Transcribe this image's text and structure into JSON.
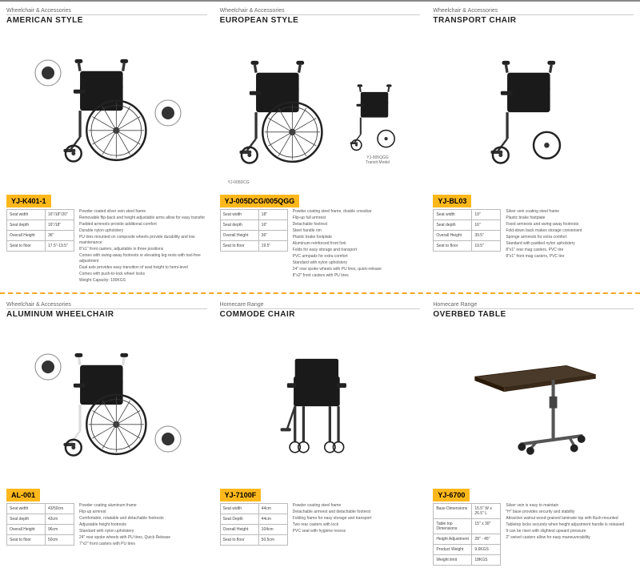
{
  "products": [
    {
      "category": "Wheelchair & Accessories",
      "title": "AMERICAN STYLE",
      "model": "YJ-K401-1",
      "specs": [
        {
          "k": "Seat width",
          "v": "16\"/18\"/20\""
        },
        {
          "k": "Seat depth",
          "v": "16\"/18\""
        },
        {
          "k": "Overall Height",
          "v": "36\""
        },
        {
          "k": "Seat to floor",
          "v": "17.5\"-19.5\""
        }
      ],
      "desc": [
        "Powder coated silver vein steel frame",
        "Removable flip-back and height adjustable arms allow for easy transfer",
        "Padded armrests provide additional comfort",
        "Durable nylon upholstery",
        "PU tires mounted on composite wheels provide durability and low maintenance",
        "8\"x1\" front casters, adjustable in three positions",
        "Comes with swing-away footrests or elevating leg rests with tool-free adjustment",
        "Dual axle provides easy transition of seat height to hemi-level",
        "Comes with push-to-lock wheel locks",
        "Weight Capacity: 100KGS"
      ]
    },
    {
      "category": "Wheelchair & Accessories",
      "title": "EUROPEAN STYLE",
      "model": "YJ-005DCG/005QGG",
      "specs": [
        {
          "k": "Seat width",
          "v": "18\""
        },
        {
          "k": "Seat depth",
          "v": "16\""
        },
        {
          "k": "Overall Height",
          "v": "36\""
        },
        {
          "k": "Seat to floor",
          "v": "19.5\""
        }
      ],
      "desc": [
        "Powder coating steel frame, double crossbar",
        "Flip-up full armrest",
        "Detachable footrest",
        "Steel handle rim",
        "Plastic brake footplate",
        "Aluminum reinforced front fork",
        "Folds for easy storage and transport",
        "PVC armpads for extra comfort",
        "Standard with nylon upholstery",
        "24\" rear spoke wheels with PU tires, quick-release",
        "8\"x2\" front casters with PU tires"
      ]
    },
    {
      "category": "Wheelchair & Accessories",
      "title": "TRANSPORT CHAIR",
      "model": "YJ-BL03",
      "specs": [
        {
          "k": "Seat width",
          "v": "19\""
        },
        {
          "k": "Seat depth",
          "v": "16\""
        },
        {
          "k": "Overall Height",
          "v": "39.5\""
        },
        {
          "k": "Seat to floor",
          "v": "19.5\""
        }
      ],
      "desc": [
        "Silver vein coating steel frame",
        "Plastic brake footplate",
        "Fixed armrests and swing-away footrests",
        "Fold-down back makes storage convenient",
        "Sponge armrests for extra comfort",
        "Standard with padded nylon upholstery",
        "8\"x1\" rear mag casters, PVC tire",
        "8\"x1\" front mag casters, PVC tire"
      ]
    },
    {
      "category": "Wheelchair & Accessories",
      "title": "ALUMINUM WHEELCHAIR",
      "model": "AL-001",
      "specs": [
        {
          "k": "Seat width",
          "v": "43/50cm"
        },
        {
          "k": "Seat depth",
          "v": "43cm"
        },
        {
          "k": "Overall Height",
          "v": "96cm"
        },
        {
          "k": "Seat to floor",
          "v": "50cm"
        }
      ],
      "desc": [
        "Powder coating aluminum frame",
        "Flip-up armrest",
        "Comfortable, rotatable and detachable footrests",
        "Adjustable height footrests",
        "Standard with nylon upholstery",
        "24\" rear spoke wheels with PU tires, Quick Release",
        "7\"x2\" front casters with PU tires"
      ]
    },
    {
      "category": "Homecare Range",
      "title": "COMMODE CHAIR",
      "model": "YJ-7100F",
      "specs": [
        {
          "k": "Seat width",
          "v": "44cm"
        },
        {
          "k": "Seat Depth",
          "v": "44cm"
        },
        {
          "k": "Overall Height",
          "v": "104cm"
        },
        {
          "k": "Seat to floor",
          "v": "50.5cm"
        }
      ],
      "desc": [
        "Powder coating steel frame",
        "Detachable armrest and detachable footrest",
        "Folding frame for easy storage and transport",
        "Two rear casters with lock",
        "PVC seat with hygiene recess"
      ]
    },
    {
      "category": "Homecare Range",
      "title": "OVERBED TABLE",
      "model": "YJ-6700",
      "specs": [
        {
          "k": "Base Dimensions",
          "v": "15.5\" W x 26.5\" L"
        },
        {
          "k": "Table top Dimensions",
          "v": "15\" x 30\""
        },
        {
          "k": "Height Adjustment",
          "v": "28\" - 45\""
        },
        {
          "k": "Product Weight",
          "v": "9.6KGS"
        },
        {
          "k": "Weight limit",
          "v": "18KGS"
        }
      ],
      "desc": [
        "Silver vein is easy to maintain",
        "\"H\" base provides security and stability",
        "Attractive walnut wood-grained laminate top with flush-mounted",
        "Tabletop locks securely when height adjustment handle is released",
        "It can be risen with slightest upward pressure",
        "2\" swivel casters allow for easy maneuverability"
      ]
    }
  ]
}
